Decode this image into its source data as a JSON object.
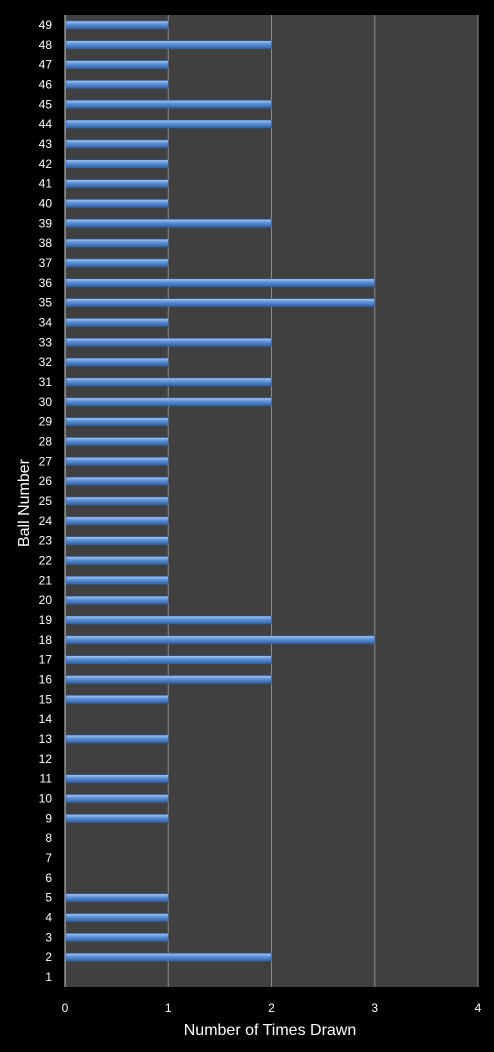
{
  "chart_data": {
    "type": "bar",
    "orientation": "horizontal",
    "title": "",
    "xlabel": "Number of Times Drawn",
    "ylabel": "Ball Number",
    "xlim": [
      0,
      4
    ],
    "xticks": [
      "0",
      "1",
      "2",
      "3",
      "4"
    ],
    "grid": true,
    "legend": "none",
    "categories": [
      "1",
      "2",
      "3",
      "4",
      "5",
      "6",
      "7",
      "8",
      "9",
      "10",
      "11",
      "12",
      "13",
      "14",
      "15",
      "16",
      "17",
      "18",
      "19",
      "20",
      "21",
      "22",
      "23",
      "24",
      "25",
      "26",
      "27",
      "28",
      "29",
      "30",
      "31",
      "32",
      "33",
      "34",
      "35",
      "36",
      "37",
      "38",
      "39",
      "40",
      "41",
      "42",
      "43",
      "44",
      "45",
      "46",
      "47",
      "48",
      "49"
    ],
    "values": [
      0,
      2,
      1,
      1,
      1,
      0,
      0,
      0,
      1,
      1,
      1,
      0,
      1,
      0,
      1,
      2,
      2,
      3,
      2,
      1,
      1,
      1,
      1,
      1,
      1,
      1,
      1,
      1,
      1,
      2,
      2,
      1,
      2,
      1,
      3,
      3,
      1,
      1,
      2,
      1,
      1,
      1,
      1,
      2,
      2,
      1,
      1,
      2,
      1
    ]
  },
  "colors": {
    "background": "#000000",
    "plot_area": "#404040",
    "gridline": "#8c8c8c",
    "bar_fill": "#5a8fd6",
    "bar_highlight": "#a9c8f0",
    "bar_shadow": "#2f5fa3",
    "text": "#ffffff"
  }
}
